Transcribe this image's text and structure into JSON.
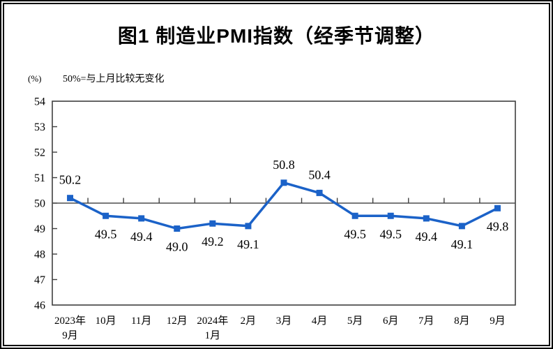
{
  "page": {
    "title": "图1 制造业PMI指数（经季节调整）",
    "unit_label": "(%)",
    "baseline_note": "50%=与上月比较无变化"
  },
  "chart_data": {
    "type": "line",
    "title": "图1 制造业PMI指数（经季节调整）",
    "ylabel": "(%)",
    "annotation": "50%=与上月比较无变化",
    "categories": [
      "2023年9月",
      "10月",
      "11月",
      "12月",
      "2024年1月",
      "2月",
      "3月",
      "4月",
      "5月",
      "6月",
      "7月",
      "8月",
      "9月"
    ],
    "category_display_lines": [
      [
        "2023年",
        "9月"
      ],
      [
        "10月"
      ],
      [
        "11月"
      ],
      [
        "12月"
      ],
      [
        "2024年",
        "1月"
      ],
      [
        "2月"
      ],
      [
        "3月"
      ],
      [
        "4月"
      ],
      [
        "5月"
      ],
      [
        "6月"
      ],
      [
        "7月"
      ],
      [
        "8月"
      ],
      [
        "9月"
      ]
    ],
    "values": [
      50.2,
      49.5,
      49.4,
      49.0,
      49.2,
      49.1,
      50.8,
      50.4,
      49.5,
      49.5,
      49.4,
      49.1,
      49.8
    ],
    "data_labels": [
      "50.2",
      "49.5",
      "49.4",
      "49.0",
      "49.2",
      "49.1",
      "50.8",
      "50.4",
      "49.5",
      "49.5",
      "49.4",
      "49.1",
      "49.8"
    ],
    "label_positions": [
      "above",
      "below",
      "below",
      "below",
      "below",
      "below",
      "above",
      "above",
      "below",
      "below",
      "below",
      "below",
      "below"
    ],
    "ylim": [
      46,
      54
    ],
    "ytick_step": 1,
    "yticks": [
      46,
      47,
      48,
      49,
      50,
      51,
      52,
      53,
      54
    ],
    "reference_line": 50,
    "grid": false,
    "legend": "none",
    "marker": "square",
    "colors": {
      "line": "#1B62C8",
      "marker": "#1B62C8",
      "plot_border": "#3f3f3f",
      "reference_line": "#4d4d4d",
      "tick": "#3f3f3f",
      "text": "#000000"
    }
  }
}
